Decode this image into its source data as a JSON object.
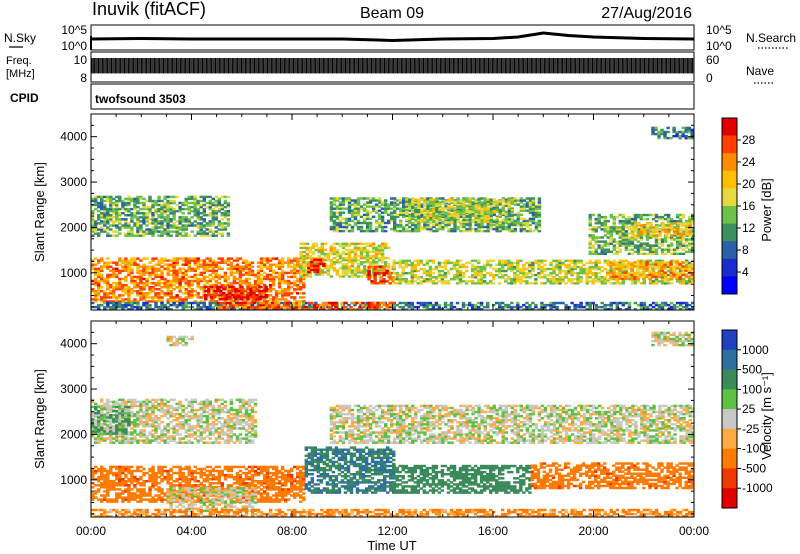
{
  "header": {
    "station": "Inuvik (fitACF)",
    "beam": "Beam 09",
    "date": "27/Aug/2016"
  },
  "strips": {
    "nsky_label": "N.Sky",
    "nsky_ticks": [
      "10^5",
      "10^0"
    ],
    "nsearch_label": "N.Search",
    "nsearch_ticks": [
      "10^5",
      "10^0"
    ],
    "freq_label_top": "Freq.",
    "freq_label_bottom": "[MHz]",
    "freq_ticks": [
      "10",
      "8"
    ],
    "nave_label": "Nave",
    "nave_ticks": [
      "60",
      "0"
    ],
    "cpid_label": "CPID",
    "cpid_value": "twofsound 3503"
  },
  "power_colorbar": {
    "label": "Power [dB]",
    "ticks": [
      "28",
      "24",
      "20",
      "16",
      "12",
      "8",
      "4"
    ],
    "colors": [
      "#e00000",
      "#ff4000",
      "#ff8c00",
      "#ffbf00",
      "#e8d840",
      "#6cc248",
      "#3a9060",
      "#2c5fa8",
      "#1a2bd0",
      "#0000ff"
    ]
  },
  "velocity_colorbar": {
    "label": "Velocity [m s⁻¹]",
    "ticks": [
      "1000",
      "500",
      "100",
      "25",
      "-25",
      "-100",
      "-500",
      "-1000"
    ],
    "colors": [
      "#2040c0",
      "#2f6fa0",
      "#3a8a5a",
      "#5ec040",
      "#c8c8c4",
      "#ffaa40",
      "#ff7a00",
      "#ee3800",
      "#e00000"
    ]
  },
  "chart_data": [
    {
      "type": "heatmap",
      "title": "Power",
      "xlabel": "Time UT",
      "ylabel": "Slant Range [km]",
      "x_ticks": [
        "00:00",
        "04:00",
        "08:00",
        "12:00",
        "16:00",
        "20:00",
        "00:00"
      ],
      "xlim": [
        0,
        24
      ],
      "ylim": [
        180,
        4500
      ],
      "y_ticks": [
        1000,
        2000,
        3000,
        4000
      ],
      "color_scale": [
        0,
        32
      ],
      "echo_regions": [
        {
          "t0": 0.0,
          "t1": 8.5,
          "r0": 350,
          "r1": 1300,
          "value": 24
        },
        {
          "t0": 4.5,
          "t1": 7.0,
          "r0": 400,
          "r1": 700,
          "value": 30
        },
        {
          "t0": 0.0,
          "t1": 5.5,
          "r0": 1800,
          "r1": 2700,
          "value": 13
        },
        {
          "t0": 8.3,
          "t1": 11.8,
          "r0": 900,
          "r1": 1650,
          "value": 18
        },
        {
          "t0": 8.6,
          "t1": 9.3,
          "r0": 1000,
          "r1": 1300,
          "value": 28
        },
        {
          "t0": 11.0,
          "t1": 12.0,
          "r0": 750,
          "r1": 1150,
          "value": 27
        },
        {
          "t0": 12.0,
          "t1": 24.0,
          "r0": 750,
          "r1": 1250,
          "value": 17
        },
        {
          "t0": 20.5,
          "t1": 24.0,
          "r0": 850,
          "r1": 1250,
          "value": 22
        },
        {
          "t0": 9.5,
          "t1": 17.8,
          "r0": 1900,
          "r1": 2650,
          "value": 13
        },
        {
          "t0": 12.5,
          "t1": 16.8,
          "r0": 2100,
          "r1": 2600,
          "value": 16
        },
        {
          "t0": 19.8,
          "t1": 24.0,
          "r0": 1400,
          "r1": 2300,
          "value": 14
        },
        {
          "t0": 21.5,
          "t1": 23.8,
          "r0": 1800,
          "r1": 2100,
          "value": 20
        },
        {
          "t0": 22.3,
          "t1": 24.0,
          "r0": 3950,
          "r1": 4200,
          "value": 10
        },
        {
          "t0": 0.0,
          "t1": 24.0,
          "r0": 180,
          "r1": 360,
          "value": 9
        },
        {
          "t0": 5.0,
          "t1": 12.0,
          "r0": 180,
          "r1": 350,
          "value": 26
        }
      ]
    },
    {
      "type": "heatmap",
      "title": "Velocity",
      "xlabel": "Time UT",
      "ylabel": "Slant Range [km]",
      "x_ticks": [
        "00:00",
        "04:00",
        "08:00",
        "12:00",
        "16:00",
        "20:00",
        "00:00"
      ],
      "xlim": [
        0,
        24
      ],
      "ylim": [
        180,
        4500
      ],
      "y_ticks": [
        1000,
        2000,
        3000,
        4000
      ],
      "color_scale": [
        -1000,
        1000
      ],
      "echo_regions": [
        {
          "t0": 0.0,
          "t1": 8.5,
          "r0": 500,
          "r1": 1300,
          "value": -250
        },
        {
          "t0": 3.0,
          "t1": 6.5,
          "r0": 300,
          "r1": 800,
          "value": 0
        },
        {
          "t0": 8.5,
          "t1": 12.0,
          "r0": 700,
          "r1": 1700,
          "value": 300
        },
        {
          "t0": 12.0,
          "t1": 17.5,
          "r0": 700,
          "r1": 1300,
          "value": 120
        },
        {
          "t0": 17.5,
          "t1": 24.0,
          "r0": 800,
          "r1": 1350,
          "value": -250
        },
        {
          "t0": 0.0,
          "t1": 6.5,
          "r0": 1800,
          "r1": 2750,
          "value": 0
        },
        {
          "t0": 9.5,
          "t1": 24.0,
          "r0": 1800,
          "r1": 2650,
          "value": 0
        },
        {
          "t0": 0.0,
          "t1": 1.5,
          "r0": 2000,
          "r1": 2600,
          "value": 60
        },
        {
          "t0": 22.3,
          "t1": 24.0,
          "r0": 3950,
          "r1": 4250,
          "value": 0
        },
        {
          "t0": 3.0,
          "t1": 4.0,
          "r0": 3950,
          "r1": 4150,
          "value": 0
        },
        {
          "t0": 0.0,
          "t1": 24.0,
          "r0": 180,
          "r1": 350,
          "value": -80
        }
      ]
    }
  ],
  "nsky_series": {
    "xlim": [
      0,
      24
    ],
    "t": [
      0,
      2,
      4,
      6,
      8,
      10,
      12,
      14,
      16,
      17,
      18,
      19,
      20,
      22,
      24
    ],
    "log_value": [
      2.2,
      2.3,
      2.2,
      2.2,
      2.2,
      2.2,
      1.9,
      2.2,
      2.3,
      2.6,
      3.4,
      2.9,
      2.6,
      2.3,
      2.2
    ],
    "ylim": [
      0,
      5
    ]
  },
  "freq_series": {
    "xlim": [
      0,
      24
    ],
    "low_mhz": 8.5,
    "high_mhz": 10.3,
    "ylim": [
      7.5,
      11
    ]
  }
}
